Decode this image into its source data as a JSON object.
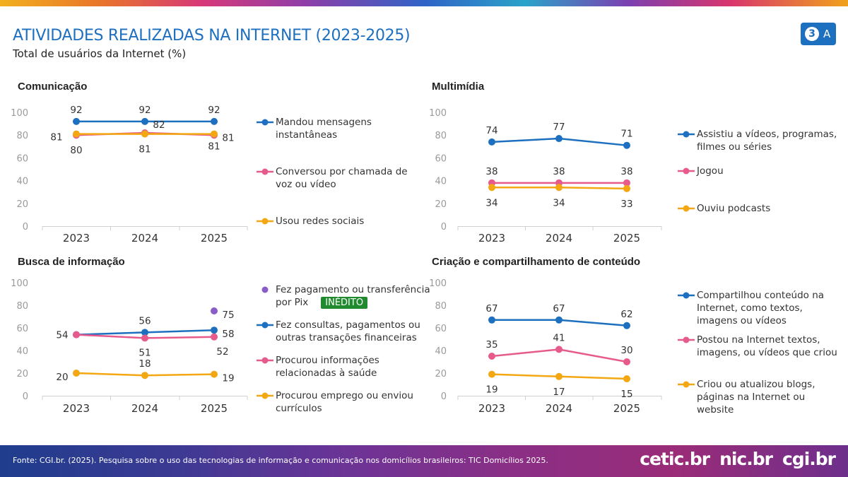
{
  "header": {
    "title": "ATIVIDADES REALIZADAS NA INTERNET (2023-2025)",
    "subtitle": "Total de usuários da Internet (%)",
    "badge_number": "3",
    "badge_letter": "A"
  },
  "footer": {
    "source": "Fonte: CGI.br. (2025). Pesquisa sobre o uso das tecnologias de informação e comunicação nos domicílios brasileiros: TIC Domicílios 2025.",
    "logos": [
      "cetic.br",
      "nic.br",
      "cgi.br"
    ]
  },
  "chart_data": [
    {
      "type": "line",
      "title": "Comunicação",
      "categories": [
        "2023",
        "2024",
        "2025"
      ],
      "ylim": [
        0,
        100
      ],
      "yticks": [
        0,
        20,
        40,
        60,
        80,
        100
      ],
      "series": [
        {
          "name": "Mandou mensagens instantâneas",
          "color": "#1d6fc0",
          "values": [
            92,
            92,
            92
          ]
        },
        {
          "name": "Conversou por chamada de voz ou vídeo",
          "color": "#e75b8c",
          "values": [
            80,
            82,
            80
          ]
        },
        {
          "name": "Usou redes sociais",
          "color": "#f3a712",
          "values": [
            81,
            81,
            81
          ]
        }
      ]
    },
    {
      "type": "line",
      "title": "Multimídia",
      "categories": [
        "2023",
        "2024",
        "2025"
      ],
      "ylim": [
        0,
        100
      ],
      "yticks": [
        0,
        20,
        40,
        60,
        80,
        100
      ],
      "series": [
        {
          "name": "Assistiu a vídeos, programas, filmes ou séries",
          "color": "#1d6fc0",
          "values": [
            74,
            77,
            71
          ]
        },
        {
          "name": "Jogou",
          "color": "#e75b8c",
          "values": [
            38,
            38,
            38
          ]
        },
        {
          "name": "Ouviu podcasts",
          "color": "#f3a712",
          "values": [
            34,
            34,
            33
          ]
        }
      ]
    },
    {
      "type": "line",
      "title": "Busca de informação",
      "categories": [
        "2023",
        "2024",
        "2025"
      ],
      "ylim": [
        0,
        100
      ],
      "yticks": [
        0,
        20,
        40,
        60,
        80,
        100
      ],
      "series": [
        {
          "name": "Fez pagamento ou transferência por Pix",
          "color": "#8a5cc8",
          "values": [
            null,
            null,
            75
          ],
          "tag": "INÉDITO"
        },
        {
          "name": "Fez consultas, pagamentos ou outras transações financeiras",
          "color": "#1d6fc0",
          "values": [
            54,
            56,
            58
          ]
        },
        {
          "name": "Procurou informações relacionadas à saúde",
          "color": "#e75b8c",
          "values": [
            54,
            51,
            52
          ]
        },
        {
          "name": "Procurou emprego ou enviou currículos",
          "color": "#f3a712",
          "values": [
            20,
            18,
            19
          ]
        }
      ]
    },
    {
      "type": "line",
      "title": "Criação e compartilhamento de conteúdo",
      "categories": [
        "2023",
        "2024",
        "2025"
      ],
      "ylim": [
        0,
        100
      ],
      "yticks": [
        0,
        20,
        40,
        60,
        80,
        100
      ],
      "series": [
        {
          "name": "Compartilhou conteúdo na Internet, como textos, imagens ou vídeos",
          "color": "#1d6fc0",
          "values": [
            67,
            67,
            62
          ]
        },
        {
          "name": "Postou na Internet textos, imagens, ou vídeos que criou",
          "color": "#e75b8c",
          "values": [
            35,
            41,
            30
          ]
        },
        {
          "name": "Criou ou atualizou blogs, páginas na Internet ou website",
          "color": "#f3a712",
          "values": [
            19,
            17,
            15
          ]
        }
      ]
    }
  ]
}
